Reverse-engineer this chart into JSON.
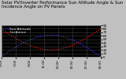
{
  "title": "Solar PV/Inverter Performance Sun Altitude Angle & Sun Incidence Angle on PV Panels",
  "legend": [
    "Sun Altitude",
    "Incidence"
  ],
  "blue_color": "#4444ff",
  "red_color": "#ff2222",
  "ylim": [
    0,
    90
  ],
  "ytick_values": [
    0,
    10,
    20,
    30,
    40,
    50,
    60,
    70,
    80,
    90
  ],
  "ytick_labels": [
    "0",
    "10",
    "20",
    "30",
    "40",
    "50",
    "60",
    "70",
    "80",
    "90"
  ],
  "xlim": [
    5,
    19
  ],
  "xtick_values": [
    5,
    7,
    9,
    11,
    13,
    15,
    17,
    19
  ],
  "xtick_labels": [
    "5:00",
    "7:00",
    "9:00",
    "11:00",
    "13:00",
    "15:00",
    "17:00",
    "19:00"
  ],
  "figure_bg": "#c0c0c0",
  "plot_bg": "#000000",
  "grid_color": "#404040",
  "title_fontsize": 4.0,
  "legend_fontsize": 3.2,
  "tick_fontsize": 3.0,
  "title_color": "#000000",
  "tick_color": "#000000",
  "n_points": 120
}
